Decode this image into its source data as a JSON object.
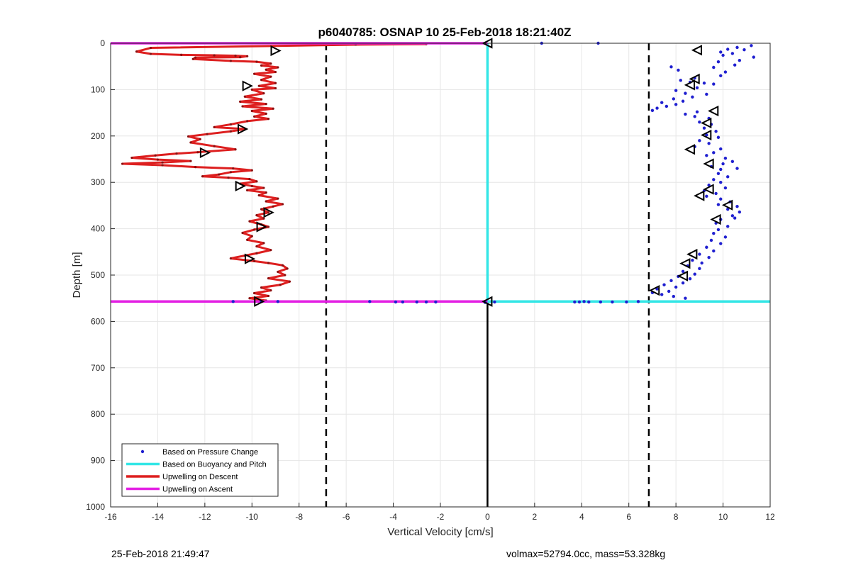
{
  "chart_data": {
    "type": "scatter",
    "title": "p6040785: OSNAP 10 25-Feb-2018 18:21:40Z",
    "xlabel": "Vertical Velocity [cm/s]",
    "ylabel": "Depth [m]",
    "xlim": [
      -16,
      12
    ],
    "ylim": [
      1000,
      0
    ],
    "y_reversed": true,
    "xticks": [
      -16,
      -14,
      -12,
      -10,
      -8,
      -6,
      -4,
      -2,
      0,
      2,
      4,
      6,
      8,
      10,
      12
    ],
    "yticks": [
      0,
      100,
      200,
      300,
      400,
      500,
      600,
      700,
      800,
      900,
      1000
    ],
    "grid": true,
    "legend_position": "bottom-left",
    "legend": [
      {
        "label": "Based on Pressure Change",
        "color": "#1f1fd0",
        "style": "dot"
      },
      {
        "label": "Based on Buoyancy and Pitch",
        "color": "#33e6e6",
        "style": "line"
      },
      {
        "label": "Upwelling on Descent",
        "color": "#dd1f1f",
        "style": "line"
      },
      {
        "label": "Upwelling on Ascent",
        "color": "#e31fe3",
        "style": "line"
      }
    ],
    "reference_lines": {
      "dashed_x": [
        -6.85,
        6.85
      ],
      "zero_line": {
        "x": 0,
        "depth_from": 557,
        "depth_to": 1000
      }
    },
    "series": [
      {
        "name": "Upwelling on Descent",
        "color": "#dd1f1f",
        "points": [
          [
            -2.6,
            2
          ],
          [
            -5.6,
            3
          ],
          [
            -14.3,
            10
          ],
          [
            -14.9,
            18
          ],
          [
            -14.3,
            23
          ],
          [
            -13.0,
            25
          ],
          [
            -11.6,
            26
          ],
          [
            -10.7,
            27
          ],
          [
            -10.2,
            28
          ],
          [
            -10.5,
            30
          ],
          [
            -12.4,
            31
          ],
          [
            -12.5,
            34
          ],
          [
            -10.9,
            38
          ],
          [
            -9.8,
            40
          ],
          [
            -9.2,
            44
          ],
          [
            -9.6,
            48
          ],
          [
            -8.9,
            52
          ],
          [
            -9.4,
            57
          ],
          [
            -9.0,
            62
          ],
          [
            -9.9,
            66
          ],
          [
            -9.2,
            72
          ],
          [
            -9.6,
            79
          ],
          [
            -9.0,
            86
          ],
          [
            -9.7,
            92
          ],
          [
            -9.0,
            97
          ],
          [
            -10.0,
            100
          ],
          [
            -9.5,
            108
          ],
          [
            -10.3,
            115
          ],
          [
            -9.6,
            121
          ],
          [
            -10.5,
            126
          ],
          [
            -9.4,
            131
          ],
          [
            -10.4,
            136
          ],
          [
            -9.1,
            141
          ],
          [
            -10.0,
            146
          ],
          [
            -9.4,
            152
          ],
          [
            -9.9,
            158
          ],
          [
            -9.3,
            163
          ],
          [
            -10.2,
            168
          ],
          [
            -10.9,
            175
          ],
          [
            -11.6,
            181
          ],
          [
            -10.3,
            185
          ],
          [
            -10.9,
            190
          ],
          [
            -11.9,
            196
          ],
          [
            -12.7,
            201
          ],
          [
            -12.2,
            207
          ],
          [
            -12.6,
            214
          ],
          [
            -11.6,
            222
          ],
          [
            -10.7,
            229
          ],
          [
            -12.3,
            235
          ],
          [
            -13.2,
            238
          ],
          [
            -14.1,
            242
          ],
          [
            -15.1,
            247
          ],
          [
            -14.0,
            251
          ],
          [
            -12.6,
            254
          ],
          [
            -13.8,
            257
          ],
          [
            -15.5,
            260
          ],
          [
            -13.8,
            263
          ],
          [
            -12.4,
            267
          ],
          [
            -10.8,
            270
          ],
          [
            -10.0,
            274
          ],
          [
            -10.9,
            278
          ],
          [
            -11.4,
            283
          ],
          [
            -12.1,
            287
          ],
          [
            -11.0,
            290
          ],
          [
            -10.1,
            293
          ],
          [
            -9.8,
            298
          ],
          [
            -10.5,
            303
          ],
          [
            -10.0,
            308
          ],
          [
            -9.5,
            312
          ],
          [
            -10.2,
            317
          ],
          [
            -9.4,
            322
          ],
          [
            -9.7,
            328
          ],
          [
            -8.9,
            335
          ],
          [
            -9.4,
            341
          ],
          [
            -8.7,
            347
          ],
          [
            -9.1,
            352
          ],
          [
            -9.6,
            358
          ],
          [
            -9.3,
            365
          ],
          [
            -9.8,
            371
          ],
          [
            -9.5,
            378
          ],
          [
            -10.1,
            384
          ],
          [
            -9.6,
            391
          ],
          [
            -9.3,
            396
          ],
          [
            -9.9,
            402
          ],
          [
            -10.4,
            409
          ],
          [
            -10.0,
            416
          ],
          [
            -10.2,
            424
          ],
          [
            -9.5,
            431
          ],
          [
            -9.8,
            438
          ],
          [
            -9.2,
            446
          ],
          [
            -9.8,
            453
          ],
          [
            -10.3,
            458
          ],
          [
            -10.9,
            464
          ],
          [
            -9.9,
            470
          ],
          [
            -9.3,
            474
          ],
          [
            -8.7,
            479
          ],
          [
            -8.5,
            486
          ],
          [
            -8.9,
            493
          ],
          [
            -8.6,
            500
          ],
          [
            -9.3,
            507
          ],
          [
            -8.4,
            514
          ],
          [
            -8.8,
            521
          ],
          [
            -9.6,
            527
          ],
          [
            -9.2,
            533
          ],
          [
            -9.9,
            539
          ],
          [
            -9.3,
            545
          ],
          [
            -10.1,
            550
          ],
          [
            -9.4,
            555
          ],
          [
            -9.7,
            558
          ]
        ]
      },
      {
        "name": "Based on Pressure Change",
        "color": "#1f1fd0",
        "points": [
          [
            2.3,
            0
          ],
          [
            4.7,
            0
          ],
          [
            11.2,
            5
          ],
          [
            10.6,
            9
          ],
          [
            10.9,
            14
          ],
          [
            10.2,
            13
          ],
          [
            9.9,
            19
          ],
          [
            10.4,
            22
          ],
          [
            10.0,
            26
          ],
          [
            11.3,
            30
          ],
          [
            10.7,
            37
          ],
          [
            9.8,
            40
          ],
          [
            10.5,
            47
          ],
          [
            9.6,
            52
          ],
          [
            7.8,
            51
          ],
          [
            8.1,
            58
          ],
          [
            10.1,
            62
          ],
          [
            9.9,
            70
          ],
          [
            8.8,
            75
          ],
          [
            8.2,
            80
          ],
          [
            8.6,
            84
          ],
          [
            9.2,
            86
          ],
          [
            9.6,
            88
          ],
          [
            8.9,
            96
          ],
          [
            8.0,
            102
          ],
          [
            8.4,
            108
          ],
          [
            9.3,
            110
          ],
          [
            8.7,
            116
          ],
          [
            7.9,
            120
          ],
          [
            8.3,
            125
          ],
          [
            7.4,
            128
          ],
          [
            8.0,
            132
          ],
          [
            7.6,
            136
          ],
          [
            7.2,
            140
          ],
          [
            7.0,
            145
          ],
          [
            8.9,
            148
          ],
          [
            8.4,
            153
          ],
          [
            8.8,
            158
          ],
          [
            9.4,
            162
          ],
          [
            9.0,
            170
          ],
          [
            9.5,
            175
          ],
          [
            9.2,
            183
          ],
          [
            9.7,
            190
          ],
          [
            9.3,
            198
          ],
          [
            9.8,
            203
          ],
          [
            9.0,
            210
          ],
          [
            9.4,
            216
          ],
          [
            8.8,
            223
          ],
          [
            9.9,
            228
          ],
          [
            9.6,
            236
          ],
          [
            9.3,
            242
          ],
          [
            10.1,
            248
          ],
          [
            10.4,
            255
          ],
          [
            10.0,
            260
          ],
          [
            9.5,
            266
          ],
          [
            9.9,
            272
          ],
          [
            10.6,
            270
          ],
          [
            9.8,
            281
          ],
          [
            10.2,
            288
          ],
          [
            9.6,
            294
          ],
          [
            9.9,
            300
          ],
          [
            9.4,
            306
          ],
          [
            10.1,
            312
          ],
          [
            9.2,
            318
          ],
          [
            9.7,
            324
          ],
          [
            9.3,
            330
          ],
          [
            9.9,
            336
          ],
          [
            10.3,
            342
          ],
          [
            9.8,
            348
          ],
          [
            10.6,
            352
          ],
          [
            10.2,
            358
          ],
          [
            10.7,
            364
          ],
          [
            10.4,
            372
          ],
          [
            9.9,
            380
          ],
          [
            10.5,
            377
          ],
          [
            9.7,
            388
          ],
          [
            10.2,
            395
          ],
          [
            9.8,
            402
          ],
          [
            9.6,
            410
          ],
          [
            10.1,
            418
          ],
          [
            9.5,
            425
          ],
          [
            9.9,
            432
          ],
          [
            9.3,
            440
          ],
          [
            9.6,
            448
          ],
          [
            9.0,
            455
          ],
          [
            9.4,
            462
          ],
          [
            8.7,
            468
          ],
          [
            9.1,
            474
          ],
          [
            8.5,
            480
          ],
          [
            9.0,
            486
          ],
          [
            8.3,
            492
          ],
          [
            8.8,
            498
          ],
          [
            8.1,
            503
          ],
          [
            8.6,
            508
          ],
          [
            7.8,
            512
          ],
          [
            8.3,
            517
          ],
          [
            7.5,
            521
          ],
          [
            8.0,
            526
          ],
          [
            7.2,
            530
          ],
          [
            7.7,
            535
          ],
          [
            7.0,
            538
          ],
          [
            7.4,
            542
          ],
          [
            7.9,
            546
          ],
          [
            8.4,
            550
          ],
          [
            -10.8,
            557
          ],
          [
            -9.6,
            557
          ],
          [
            -8.9,
            557
          ],
          [
            -5.0,
            557
          ],
          [
            -3.9,
            558
          ],
          [
            -3.6,
            558
          ],
          [
            -3.0,
            558
          ],
          [
            -2.6,
            558
          ],
          [
            -2.2,
            558
          ],
          [
            3.7,
            558
          ],
          [
            3.9,
            558
          ],
          [
            4.1,
            557
          ],
          [
            4.3,
            558
          ],
          [
            4.8,
            558
          ],
          [
            5.3,
            558
          ],
          [
            5.9,
            558
          ],
          [
            6.4,
            557
          ],
          [
            0.3,
            558
          ],
          [
            -0.1,
            559
          ]
        ]
      },
      {
        "name": "Based on Buoyancy and Pitch",
        "color": "#33e6e6",
        "points": [
          [
            0,
            0
          ],
          [
            0,
            557
          ],
          [
            12,
            557
          ]
        ]
      },
      {
        "name": "Upwelling on Ascent",
        "color": "#e31fe3",
        "segments": [
          [
            [
              -16,
              0
            ],
            [
              0,
              0
            ]
          ],
          [
            [
              -16,
              557
            ],
            [
              0,
              557
            ]
          ]
        ]
      }
    ],
    "markers": {
      "descent": [
        [
          -9.0,
          16
        ],
        [
          -10.2,
          92
        ],
        [
          -10.4,
          185
        ],
        [
          -12.0,
          236
        ],
        [
          -10.5,
          308
        ],
        [
          -9.3,
          365
        ],
        [
          -9.6,
          396
        ],
        [
          -10.1,
          465
        ],
        [
          -9.7,
          557
        ]
      ],
      "ascent": [
        [
          8.9,
          15
        ],
        [
          8.8,
          77
        ],
        [
          8.6,
          90
        ],
        [
          9.6,
          146
        ],
        [
          9.3,
          172
        ],
        [
          9.3,
          198
        ],
        [
          8.6,
          229
        ],
        [
          9.4,
          260
        ],
        [
          9.4,
          315
        ],
        [
          9.0,
          329
        ],
        [
          10.2,
          349
        ],
        [
          9.7,
          380
        ],
        [
          8.7,
          455
        ],
        [
          8.4,
          475
        ],
        [
          8.3,
          502
        ],
        [
          7.1,
          533
        ],
        [
          0,
          557
        ],
        [
          0,
          0
        ]
      ]
    }
  },
  "footer": {
    "left": "25-Feb-2018 21:49:47",
    "right": "volmax=52794.0cc, mass=53.328kg"
  }
}
